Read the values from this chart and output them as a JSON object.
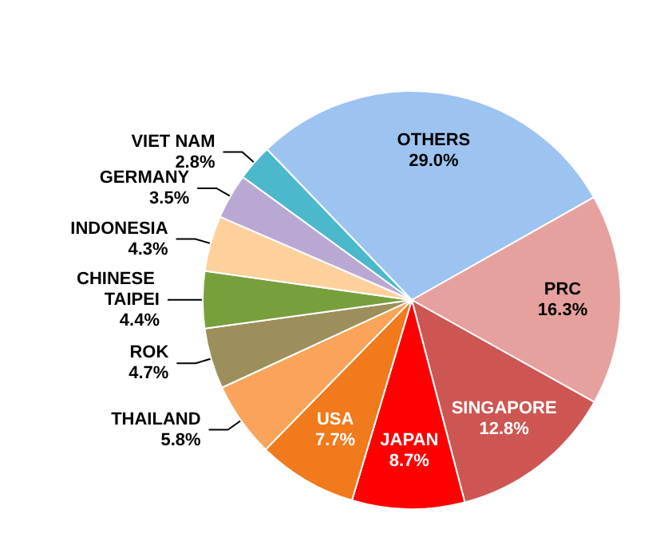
{
  "chart_data": {
    "type": "pie",
    "categories": [
      "OTHERS",
      "PRC",
      "SINGAPORE",
      "JAPAN",
      "USA",
      "THAILAND",
      "ROK",
      "CHINESE TAIPEI",
      "INDONESIA",
      "GERMANY",
      "VIET NAM"
    ],
    "values": [
      29.0,
      16.3,
      12.8,
      8.7,
      7.7,
      5.8,
      4.7,
      4.4,
      4.3,
      3.5,
      2.8
    ],
    "value_labels": [
      "29.0%",
      "16.3%",
      "12.8%",
      "8.7%",
      "7.7%",
      "5.8%",
      "4.7%",
      "4.4%",
      "4.3%",
      "3.5%",
      "2.8%"
    ],
    "colors": [
      "#9dc3f0",
      "#e6a19f",
      "#cd5652",
      "#ff0000",
      "#f07a1c",
      "#f9a45a",
      "#9c8f5b",
      "#77a03c",
      "#fdd09c",
      "#b9a8d4",
      "#4bb8cc"
    ],
    "legend": false
  }
}
